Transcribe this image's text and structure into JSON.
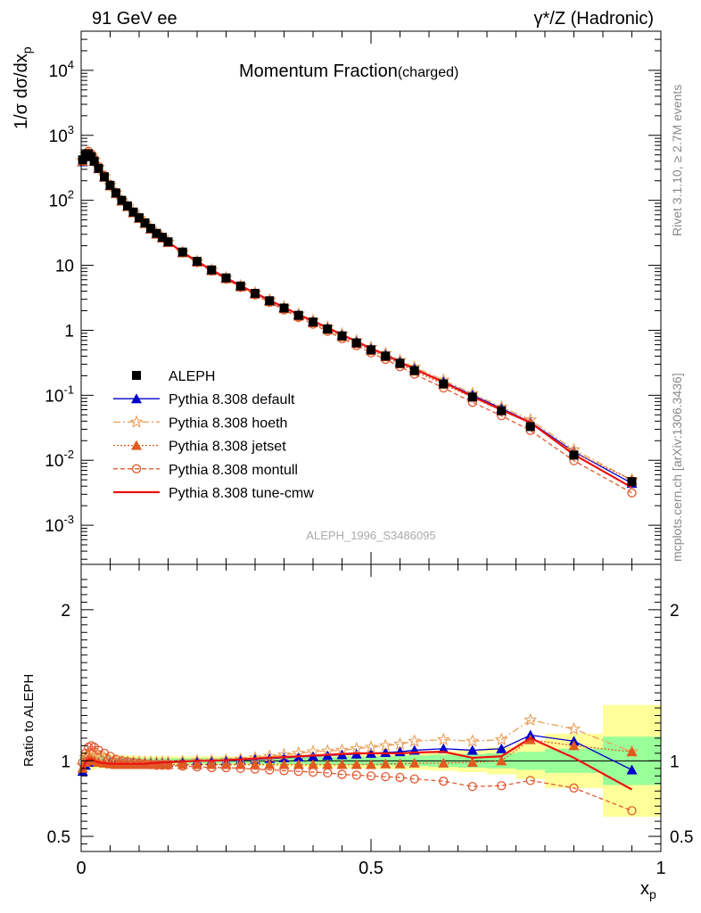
{
  "chart_data": {
    "type": "line",
    "header_left": "91 GeV ee",
    "header_right": "γ*/Z (Hadronic)",
    "title": "Momentum Fraction",
    "title_sub": "(charged)",
    "ylabel": "1/σ dσ/dx",
    "ylabel_sub": "p",
    "xlabel": "x",
    "xlabel_sub": "p",
    "ratio_ylabel": "Ratio to ALEPH",
    "analysis_label": "ALEPH_1996_S3486095",
    "side_label_top": "Rivet 3.1.10, ≥ 2.7M events",
    "side_label_bottom": "mcplots.cern.ch [arXiv:1306.3436]",
    "x_ticks": [
      "0",
      "0.5",
      "1"
    ],
    "y_ticks": [
      "10^-3",
      "10^-2",
      "10^-1",
      "1",
      "10",
      "10^2",
      "10^3",
      "10^4"
    ],
    "ratio_ticks": [
      "0.5",
      "1",
      "2"
    ],
    "xlim": [
      0,
      1
    ],
    "ylim": [
      0.00025,
      40000
    ],
    "ylog": true,
    "ratio_ylim": [
      0.4,
      2.3
    ],
    "legend_position": "left-center",
    "x": [
      0.0025,
      0.0075,
      0.0125,
      0.0175,
      0.0225,
      0.03,
      0.04,
      0.05,
      0.06,
      0.07,
      0.08,
      0.09,
      0.1,
      0.11,
      0.12,
      0.13,
      0.14,
      0.15,
      0.175,
      0.2,
      0.225,
      0.25,
      0.275,
      0.3,
      0.325,
      0.35,
      0.375,
      0.4,
      0.425,
      0.45,
      0.475,
      0.5,
      0.525,
      0.55,
      0.575,
      0.625,
      0.675,
      0.725,
      0.775,
      0.85,
      0.95
    ],
    "aleph_values": [
      420,
      500,
      520,
      470,
      400,
      310,
      230,
      170,
      130,
      100,
      82,
      66,
      54,
      45,
      37,
      31,
      27,
      23,
      16,
      11.5,
      8.5,
      6.4,
      4.8,
      3.7,
      2.85,
      2.2,
      1.7,
      1.34,
      1.05,
      0.82,
      0.64,
      0.5,
      0.4,
      0.31,
      0.24,
      0.15,
      0.094,
      0.058,
      0.033,
      0.012,
      0.0047
    ],
    "band_x_edges": [
      0,
      0.025,
      0.05,
      0.1,
      0.15,
      0.2,
      0.25,
      0.3,
      0.35,
      0.4,
      0.45,
      0.5,
      0.55,
      0.6,
      0.65,
      0.7,
      0.75,
      0.8,
      0.9,
      1.0
    ],
    "band_inner": [
      0.035,
      0.03,
      0.02,
      0.018,
      0.018,
      0.018,
      0.018,
      0.02,
      0.022,
      0.025,
      0.028,
      0.03,
      0.035,
      0.04,
      0.045,
      0.05,
      0.06,
      0.08,
      0.16
    ],
    "band_outer": [
      0.06,
      0.05,
      0.035,
      0.03,
      0.03,
      0.03,
      0.03,
      0.035,
      0.04,
      0.045,
      0.05,
      0.055,
      0.06,
      0.065,
      0.075,
      0.09,
      0.12,
      0.18,
      0.37
    ],
    "series": [
      {
        "name": "ALEPH",
        "color": "#000000",
        "ratio": [
          1,
          1,
          1,
          1,
          1,
          1,
          1,
          1,
          1,
          1,
          1,
          1,
          1,
          1,
          1,
          1,
          1,
          1,
          1,
          1,
          1,
          1,
          1,
          1,
          1,
          1,
          1,
          1,
          1,
          1,
          1,
          1,
          1,
          1,
          1,
          1,
          1,
          1,
          1,
          1,
          1
        ]
      },
      {
        "name": "Pythia 8.308 default",
        "color": "#0000cc",
        "ratio": [
          0.93,
          0.97,
          0.99,
          1.0,
          1.0,
          0.99,
          0.99,
          0.99,
          0.985,
          0.985,
          0.985,
          0.985,
          0.985,
          0.985,
          0.99,
          0.99,
          0.99,
          0.99,
          0.995,
          1.0,
          1.0,
          1.0,
          1.005,
          1.01,
          1.015,
          1.02,
          1.025,
          1.03,
          1.035,
          1.04,
          1.045,
          1.05,
          1.055,
          1.06,
          1.07,
          1.08,
          1.07,
          1.08,
          1.17,
          1.13,
          0.94
        ]
      },
      {
        "name": "Pythia 8.308 hoeth",
        "color": "#e8a05a",
        "ratio": [
          0.97,
          1.02,
          1.04,
          1.05,
          1.04,
          1.03,
          1.02,
          1.0,
          1.0,
          0.995,
          0.99,
          0.99,
          0.99,
          0.99,
          0.99,
          0.99,
          0.99,
          0.99,
          0.995,
          1.0,
          1.0,
          1.005,
          1.01,
          1.02,
          1.03,
          1.04,
          1.05,
          1.06,
          1.065,
          1.07,
          1.08,
          1.09,
          1.1,
          1.11,
          1.13,
          1.14,
          1.13,
          1.14,
          1.27,
          1.21,
          1.06
        ]
      },
      {
        "name": "Pythia 8.308 jetset",
        "color": "#e05a1e",
        "ratio": [
          0.95,
          0.99,
          1.01,
          1.01,
          1.0,
          0.99,
          0.985,
          0.98,
          0.975,
          0.975,
          0.975,
          0.975,
          0.975,
          0.975,
          0.975,
          0.975,
          0.975,
          0.975,
          0.975,
          0.975,
          0.975,
          0.975,
          0.975,
          0.975,
          0.975,
          0.975,
          0.975,
          0.975,
          0.975,
          0.975,
          0.975,
          0.975,
          0.98,
          0.98,
          0.985,
          0.985,
          0.99,
          1.0,
          1.14,
          1.1,
          1.06
        ]
      },
      {
        "name": "Pythia 8.308 montull",
        "color": "#e05a30",
        "ratio": [
          0.99,
          1.05,
          1.09,
          1.1,
          1.09,
          1.07,
          1.05,
          1.03,
          1.01,
          1.0,
          0.995,
          0.99,
          0.985,
          0.98,
          0.975,
          0.97,
          0.97,
          0.97,
          0.965,
          0.96,
          0.955,
          0.955,
          0.95,
          0.945,
          0.94,
          0.935,
          0.93,
          0.925,
          0.92,
          0.91,
          0.905,
          0.9,
          0.895,
          0.89,
          0.88,
          0.865,
          0.83,
          0.835,
          0.87,
          0.82,
          0.67
        ]
      },
      {
        "name": "Pythia 8.308 tune-cmw",
        "color": "#ee1111",
        "ratio": [
          0.94,
          0.99,
          1.01,
          1.01,
          1.0,
          0.99,
          0.985,
          0.98,
          0.98,
          0.98,
          0.98,
          0.98,
          0.98,
          0.98,
          0.985,
          0.985,
          0.99,
          0.99,
          0.995,
          1.0,
          1.0,
          1.005,
          1.01,
          1.015,
          1.02,
          1.025,
          1.03,
          1.035,
          1.04,
          1.045,
          1.05,
          1.05,
          1.05,
          1.05,
          1.055,
          1.06,
          1.02,
          1.03,
          1.15,
          1.02,
          0.81
        ]
      }
    ]
  }
}
